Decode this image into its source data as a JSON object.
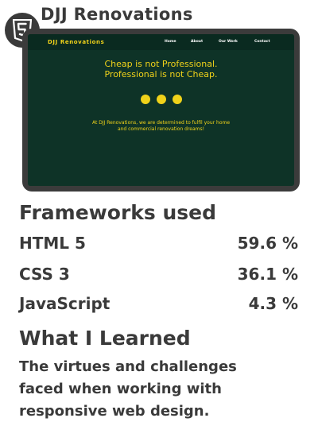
{
  "project": {
    "title": "DJJ Renovations",
    "icon": "html5-icon"
  },
  "preview": {
    "brand": "DJJ Renovations",
    "nav": [
      "Home",
      "About",
      "Our Work",
      "Contact"
    ],
    "hero_line_1": "Cheap is not Professional.",
    "hero_line_2": "Professional is not Cheap.",
    "tagline_line_1": "At DJJ Renovations, we are determined to fulfil your home",
    "tagline_line_2": "and commercial renovation dreams!",
    "colors": {
      "background": "#0e3327",
      "accent": "#f0d21a"
    }
  },
  "frameworks": {
    "heading": "Frameworks used",
    "items": [
      {
        "name": "HTML 5",
        "percent": "59.6 %"
      },
      {
        "name": "CSS 3",
        "percent": "36.1 %"
      },
      {
        "name": "JavaScript",
        "percent": "4.3 %"
      }
    ]
  },
  "learned": {
    "heading": "What I Learned",
    "line_1": "The virtues and challenges",
    "line_2": "faced when working with",
    "line_3": "responsive web design."
  }
}
